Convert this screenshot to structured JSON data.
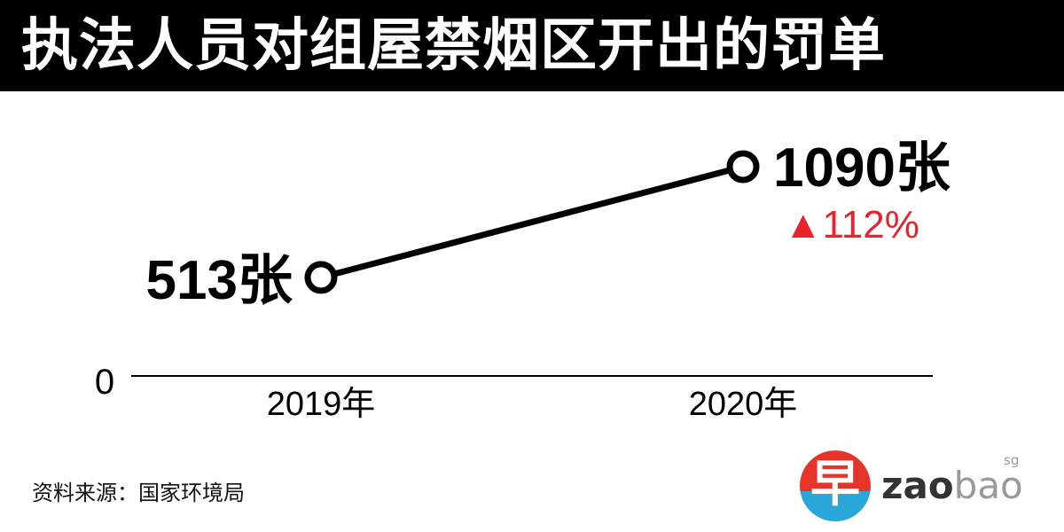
{
  "header": {
    "title": "执法人员对组屋禁烟区开出的罚单"
  },
  "chart_data": {
    "type": "line",
    "title": "执法人员对组屋禁烟区开出的罚单",
    "categories": [
      "2019年",
      "2020年"
    ],
    "series": [
      {
        "values": [
          513,
          1090
        ],
        "color": "#000000"
      }
    ],
    "data_labels": [
      "513张",
      "1090张"
    ],
    "annotation": "▲112%",
    "annotation_color": "#e8232a",
    "baseline_label": "0",
    "ylim": [
      0,
      1090
    ],
    "grid": false,
    "legend": "none"
  },
  "footer": {
    "source": "资料来源：国家环境局",
    "logo": {
      "glyph": "早",
      "word_dark": "zao",
      "word_light": "bao",
      "superscript": "sg"
    }
  },
  "colors": {
    "header_bg": "#000000",
    "line": "#000000",
    "accent_red": "#e8232a",
    "logo_red": "#e5352b",
    "logo_blue": "#2aa7d8"
  }
}
